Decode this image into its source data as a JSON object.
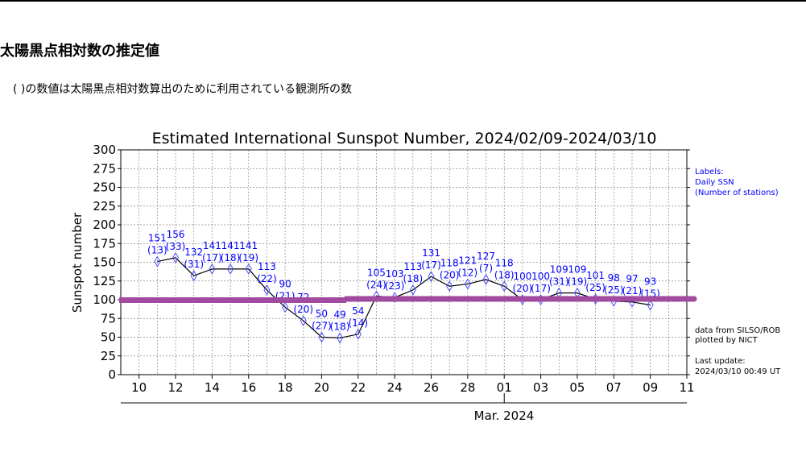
{
  "page": {
    "heading": "太陽黒点相対数の推定値",
    "note": "( )の数値は太陽黒点相対数算出のために利用されている観測所の数"
  },
  "chart_data": {
    "type": "line",
    "title": "Estimated International Sunspot Number, 2024/02/09-2024/03/10",
    "xlabel": "Mar. 2024",
    "ylabel": "Sunspot number",
    "ylim": [
      0,
      300
    ],
    "yticks": [
      "0",
      "25",
      "50",
      "75",
      "100",
      "125",
      "150",
      "175",
      "200",
      "225",
      "250",
      "275",
      "300"
    ],
    "xlim": [
      "2024-02-09",
      "2024-03-11"
    ],
    "xticks": [
      {
        "date": "2024-02-10",
        "label": "10"
      },
      {
        "date": "2024-02-12",
        "label": "12"
      },
      {
        "date": "2024-02-14",
        "label": "14"
      },
      {
        "date": "2024-02-16",
        "label": "16"
      },
      {
        "date": "2024-02-18",
        "label": "18"
      },
      {
        "date": "2024-02-20",
        "label": "20"
      },
      {
        "date": "2024-02-22",
        "label": "22"
      },
      {
        "date": "2024-02-24",
        "label": "24"
      },
      {
        "date": "2024-02-26",
        "label": "26"
      },
      {
        "date": "2024-02-28",
        "label": "28"
      },
      {
        "date": "2024-03-01",
        "label": "01"
      },
      {
        "date": "2024-03-03",
        "label": "03"
      },
      {
        "date": "2024-03-05",
        "label": "05"
      },
      {
        "date": "2024-03-07",
        "label": "07"
      },
      {
        "date": "2024-03-09",
        "label": "09"
      },
      {
        "date": "2024-03-11",
        "label": "11"
      }
    ],
    "grid": true,
    "series_color": "#000000",
    "label_color": "#0000ff",
    "marker_color": "#4040ff",
    "points": [
      {
        "date": "2024-02-11",
        "ssn": 151,
        "stations": 13
      },
      {
        "date": "2024-02-12",
        "ssn": 156,
        "stations": 33
      },
      {
        "date": "2024-02-13",
        "ssn": 132,
        "stations": 31
      },
      {
        "date": "2024-02-14",
        "ssn": 141,
        "stations": 17
      },
      {
        "date": "2024-02-15",
        "ssn": 141,
        "stations": 18
      },
      {
        "date": "2024-02-16",
        "ssn": 141,
        "stations": 19
      },
      {
        "date": "2024-02-17",
        "ssn": 113,
        "stations": 22
      },
      {
        "date": "2024-02-18",
        "ssn": 90,
        "stations": 21
      },
      {
        "date": "2024-02-19",
        "ssn": 72,
        "stations": 20
      },
      {
        "date": "2024-02-20",
        "ssn": 50,
        "stations": 27
      },
      {
        "date": "2024-02-21",
        "ssn": 49,
        "stations": 18
      },
      {
        "date": "2024-02-22",
        "ssn": 54,
        "stations": 14
      },
      {
        "date": "2024-02-23",
        "ssn": 105,
        "stations": 24
      },
      {
        "date": "2024-02-24",
        "ssn": 103,
        "stations": 23
      },
      {
        "date": "2024-02-25",
        "ssn": 113,
        "stations": 18
      },
      {
        "date": "2024-02-26",
        "ssn": 131,
        "stations": 17
      },
      {
        "date": "2024-02-27",
        "ssn": 118,
        "stations": 20
      },
      {
        "date": "2024-02-28",
        "ssn": 121,
        "stations": 12
      },
      {
        "date": "2024-02-29",
        "ssn": 127,
        "stations": 7
      },
      {
        "date": "2024-03-01",
        "ssn": 118,
        "stations": 18
      },
      {
        "date": "2024-03-02",
        "ssn": 100,
        "stations": 20
      },
      {
        "date": "2024-03-03",
        "ssn": 100,
        "stations": 17
      },
      {
        "date": "2024-03-04",
        "ssn": 109,
        "stations": 31
      },
      {
        "date": "2024-03-05",
        "ssn": 109,
        "stations": 19
      },
      {
        "date": "2024-03-06",
        "ssn": 101,
        "stations": 25
      },
      {
        "date": "2024-03-07",
        "ssn": 98,
        "stations": 25
      },
      {
        "date": "2024-03-08",
        "ssn": 97,
        "stations": 21
      },
      {
        "date": "2024-03-09",
        "ssn": 93,
        "stations": 15
      }
    ],
    "overlay_line": {
      "value": 100,
      "color": "#a04aa0"
    },
    "legend": {
      "lines": [
        "Labels:",
        "Daily SSN",
        "(Number of stations)"
      ],
      "placement": "right-top"
    },
    "annotations": {
      "source": [
        "data from SILSO/ROB",
        "plotted by NICT"
      ],
      "update": [
        "Last update:",
        "2024/03/10 00:49 UT"
      ]
    }
  }
}
